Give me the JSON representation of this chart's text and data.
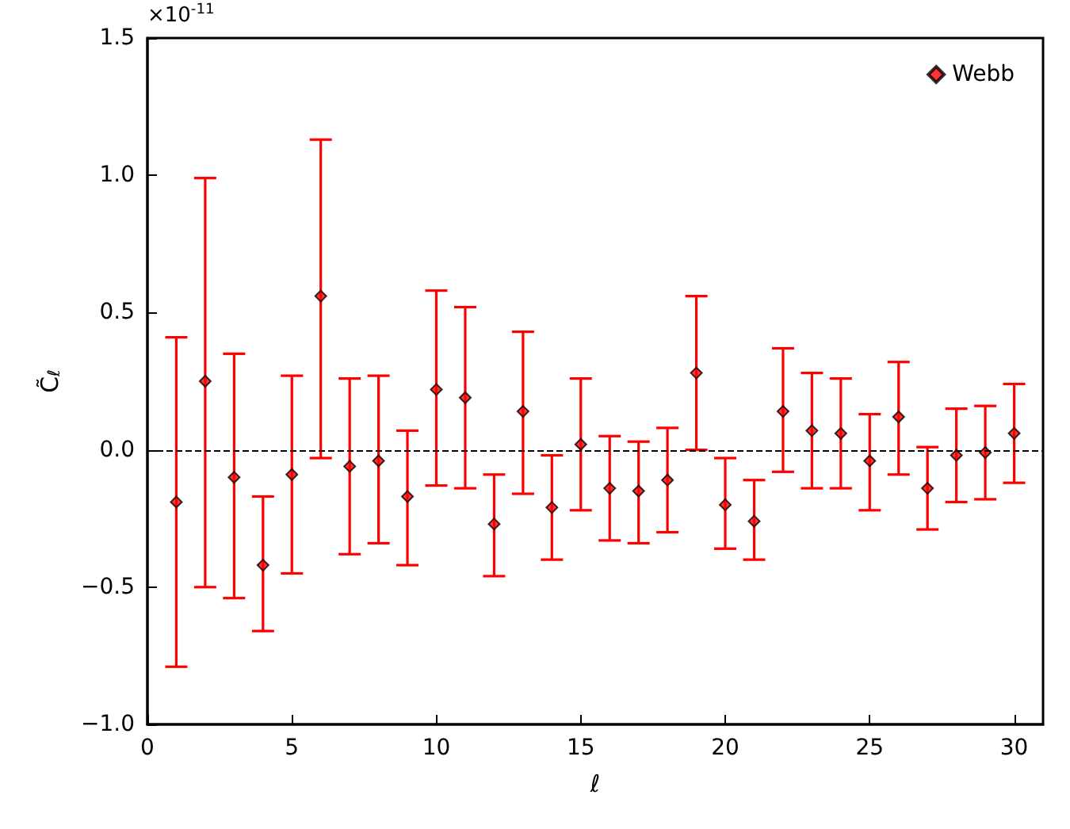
{
  "chart_data": {
    "type": "scatter",
    "xlabel": "ℓ",
    "ylabel": "C̃$_{ℓ}$",
    "annotations": [
      "×10$^{-11}$"
    ],
    "x": [
      1,
      2,
      3,
      4,
      5,
      6,
      7,
      8,
      9,
      10,
      11,
      12,
      13,
      14,
      15,
      16,
      17,
      18,
      19,
      20,
      21,
      22,
      23,
      24,
      25,
      26,
      27,
      28,
      29,
      30
    ],
    "series": [
      {
        "name": "Webb",
        "color": "#ff0000",
        "marker": "diamond",
        "values": [
          -0.19,
          0.25,
          -0.1,
          -0.42,
          -0.09,
          0.56,
          -0.06,
          -0.04,
          -0.17,
          0.22,
          0.19,
          -0.27,
          0.14,
          -0.21,
          0.02,
          -0.14,
          -0.15,
          -0.11,
          0.28,
          -0.2,
          -0.26,
          0.14,
          0.07,
          0.06,
          -0.04,
          0.12,
          -0.14,
          -0.02,
          -0.01,
          0.06
        ],
        "errors": [
          [
            -0.79,
            0.41
          ],
          [
            -0.5,
            0.99
          ],
          [
            -0.54,
            0.35
          ],
          [
            -0.66,
            -0.17
          ],
          [
            -0.45,
            0.27
          ],
          [
            -0.03,
            1.13
          ],
          [
            -0.38,
            0.26
          ],
          [
            -0.34,
            0.27
          ],
          [
            -0.42,
            0.07
          ],
          [
            -0.13,
            0.58
          ],
          [
            -0.14,
            0.52
          ],
          [
            -0.46,
            -0.09
          ],
          [
            -0.16,
            0.43
          ],
          [
            -0.4,
            -0.02
          ],
          [
            -0.22,
            0.26
          ],
          [
            -0.33,
            0.05
          ],
          [
            -0.34,
            0.03
          ],
          [
            -0.3,
            0.08
          ],
          [
            0.0,
            0.56
          ],
          [
            -0.36,
            -0.03
          ],
          [
            -0.4,
            -0.11
          ],
          [
            -0.08,
            0.37
          ],
          [
            -0.14,
            0.28
          ],
          [
            -0.14,
            0.26
          ],
          [
            -0.22,
            0.13
          ],
          [
            -0.09,
            0.32
          ],
          [
            -0.29,
            0.01
          ],
          [
            -0.19,
            0.15
          ],
          [
            -0.18,
            0.16
          ],
          [
            -0.12,
            0.24
          ]
        ]
      }
    ],
    "xlim": [
      0,
      31
    ],
    "xticks": [
      0,
      5,
      10,
      15,
      20,
      25,
      30
    ],
    "ylim": [
      -1.0,
      1.5
    ],
    "yticks": [
      {
        "value": -1.0,
        "label": "−1.0"
      },
      {
        "value": -0.5,
        "label": "−0.5"
      },
      {
        "value": 0,
        "label": "0.0"
      },
      {
        "value": 0.5,
        "label": "0.5"
      },
      {
        "value": 1.0,
        "label": "1.0"
      },
      {
        "value": 1.5,
        "label": "1.5"
      }
    ],
    "ref_lines": [
      {
        "axis": "y",
        "value": 0,
        "color": "#000000",
        "line_style": "dashed"
      }
    ],
    "grid": false,
    "legend": "top right"
  }
}
